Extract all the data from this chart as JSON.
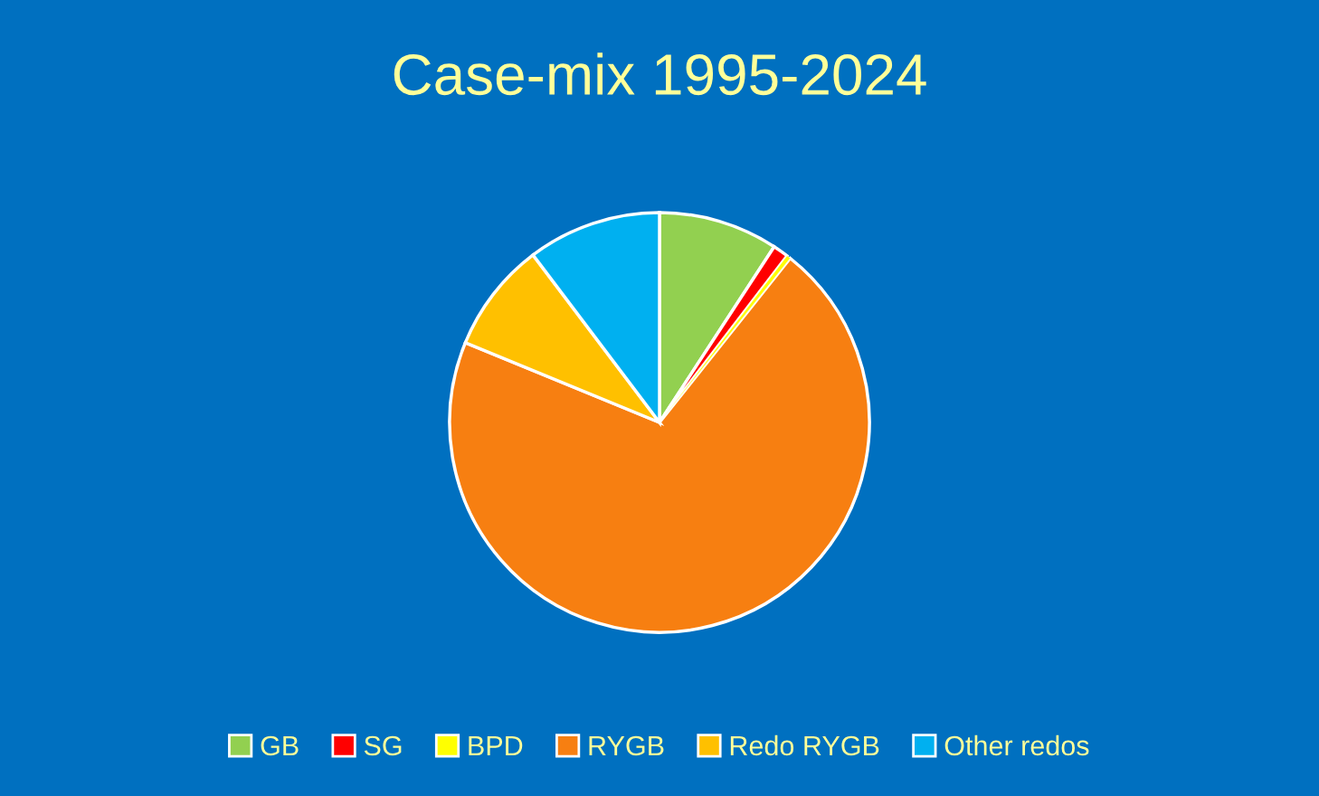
{
  "chart_data": {
    "type": "pie",
    "title": "Case-mix 1995-2024",
    "categories": [
      "GB",
      "SG",
      "BPD",
      "RYGB",
      "Redo RYGB",
      "Other redos"
    ],
    "values": [
      9.2,
      1.2,
      0.3,
      70.5,
      8.5,
      10.3
    ],
    "colors": [
      "#92d050",
      "#ff0000",
      "#ffff00",
      "#f77f11",
      "#ffc000",
      "#00b0f0"
    ],
    "legend": "bottom"
  }
}
